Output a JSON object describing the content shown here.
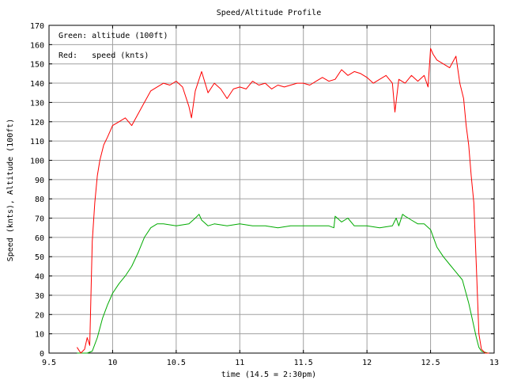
{
  "chart_data": {
    "type": "line",
    "title": "Speed/Altitude Profile",
    "xlabel": "time (14.5 = 2:30pm)",
    "ylabel": "Speed (knts), Altitude (100ft)",
    "xlim": [
      9.5,
      13
    ],
    "ylim": [
      0,
      170
    ],
    "xticks": [
      9.5,
      10,
      10.5,
      11,
      11.5,
      12,
      12.5,
      13
    ],
    "xtick_labels": [
      "9.5",
      "10",
      "10.5",
      "11",
      "11.5",
      "12",
      "12.5",
      "13"
    ],
    "yticks": [
      0,
      10,
      20,
      30,
      40,
      50,
      60,
      70,
      80,
      90,
      100,
      110,
      120,
      130,
      140,
      150,
      160,
      170
    ],
    "ytick_labels": [
      "0",
      "10",
      "20",
      "30",
      "40",
      "50",
      "60",
      "70",
      "80",
      "90",
      "100",
      "110",
      "120",
      "130",
      "140",
      "150",
      "160",
      "170"
    ],
    "grid": true,
    "legend": [
      "Green: altitude (100ft)",
      "Red:   speed (knts)"
    ],
    "legend_placement": "top-left",
    "series": [
      {
        "color": "#00aa00",
        "x": [
          9.72,
          9.8,
          9.84,
          9.88,
          9.92,
          9.96,
          10.0,
          10.05,
          10.1,
          10.15,
          10.2,
          10.25,
          10.3,
          10.35,
          10.4,
          10.5,
          10.6,
          10.65,
          10.68,
          10.7,
          10.75,
          10.8,
          10.9,
          11.0,
          11.1,
          11.2,
          11.3,
          11.4,
          11.5,
          11.6,
          11.7,
          11.74,
          11.75,
          11.8,
          11.85,
          11.9,
          12.0,
          12.1,
          12.2,
          12.23,
          12.25,
          12.28,
          12.3,
          12.35,
          12.4,
          12.45,
          12.5,
          12.55,
          12.6,
          12.65,
          12.7,
          12.75,
          12.8,
          12.83,
          12.86,
          12.88,
          12.9,
          12.95
        ],
        "values": [
          0,
          0,
          1,
          8,
          18,
          25,
          31,
          36,
          40,
          45,
          52,
          60,
          65,
          67,
          67,
          66,
          67,
          70,
          72,
          69,
          66,
          67,
          66,
          67,
          66,
          66,
          65,
          66,
          66,
          66,
          66,
          65,
          71,
          68,
          70,
          66,
          66,
          65,
          66,
          70,
          66,
          72,
          71,
          69,
          67,
          67,
          64,
          55,
          50,
          46,
          42,
          38,
          26,
          17,
          8,
          3,
          1,
          0
        ]
      },
      {
        "color": "#ff0000",
        "x": [
          9.72,
          9.75,
          9.78,
          9.8,
          9.82,
          9.84,
          9.86,
          9.88,
          9.9,
          9.93,
          9.96,
          10.0,
          10.05,
          10.1,
          10.15,
          10.2,
          10.25,
          10.3,
          10.35,
          10.4,
          10.45,
          10.5,
          10.55,
          10.6,
          10.62,
          10.65,
          10.7,
          10.75,
          10.8,
          10.85,
          10.9,
          10.95,
          11.0,
          11.05,
          11.1,
          11.15,
          11.2,
          11.25,
          11.3,
          11.35,
          11.4,
          11.45,
          11.5,
          11.55,
          11.6,
          11.65,
          11.7,
          11.75,
          11.8,
          11.85,
          11.9,
          11.95,
          12.0,
          12.05,
          12.1,
          12.15,
          12.2,
          12.22,
          12.25,
          12.3,
          12.35,
          12.4,
          12.45,
          12.48,
          12.5,
          12.52,
          12.55,
          12.6,
          12.65,
          12.7,
          12.73,
          12.76,
          12.78,
          12.8,
          12.82,
          12.84,
          12.86,
          12.88,
          12.9,
          12.93,
          12.96
        ],
        "values": [
          3,
          0,
          2,
          8,
          4,
          58,
          78,
          92,
          100,
          108,
          112,
          118,
          120,
          122,
          118,
          124,
          130,
          136,
          138,
          140,
          139,
          141,
          138,
          128,
          122,
          136,
          146,
          135,
          140,
          137,
          132,
          137,
          138,
          137,
          141,
          139,
          140,
          137,
          139,
          138,
          139,
          140,
          140,
          139,
          141,
          143,
          141,
          142,
          147,
          144,
          146,
          145,
          143,
          140,
          142,
          144,
          140,
          125,
          142,
          140,
          144,
          141,
          144,
          138,
          158,
          155,
          152,
          150,
          148,
          154,
          140,
          132,
          118,
          108,
          92,
          78,
          45,
          10,
          2,
          0,
          0
        ]
      }
    ]
  }
}
